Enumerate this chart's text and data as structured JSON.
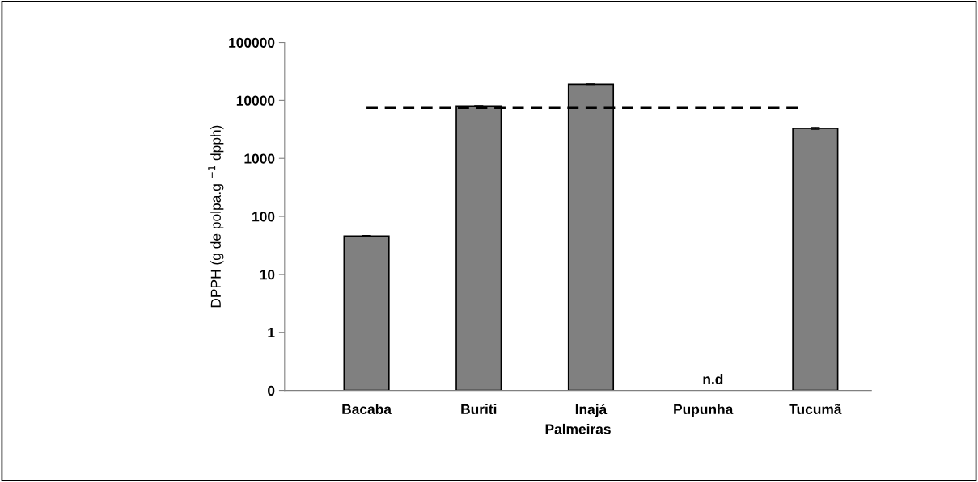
{
  "chart_data": {
    "type": "bar",
    "xlabel": "Palmeiras",
    "ylabel": "DPPH (g de polpa.g $^{−1}$ dpph)",
    "categories": [
      "Bacaba",
      "Buriti",
      "Inajá",
      "Pupunha",
      "Tucumã"
    ],
    "values": [
      46,
      8000,
      19000,
      null,
      3300
    ],
    "errors": [
      1,
      100,
      200,
      null,
      120
    ],
    "color": "#808080",
    "log": true,
    "ylim": [
      0.1,
      100000
    ],
    "yticks": [
      {
        "value": 0.1,
        "label": "0"
      },
      1,
      10,
      100,
      1000,
      10000,
      100000
    ],
    "ref_lines": [
      {
        "axis": "y",
        "value": 7500,
        "line_style": "dashed",
        "color": "#000000"
      }
    ],
    "annotations": [
      "n.d"
    ],
    "grid": false
  }
}
